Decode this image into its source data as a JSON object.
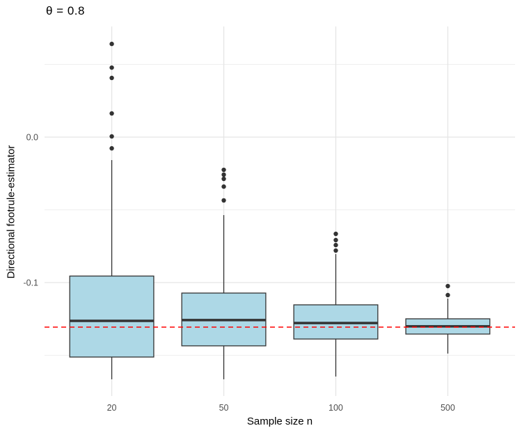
{
  "title": "θ = 0.8",
  "x_axis": {
    "label": "Sample size n",
    "tick_labels": [
      "20",
      "50",
      "100",
      "500"
    ]
  },
  "y_axis": {
    "label": "Directional footrule-estimator",
    "ticks": [
      {
        "label": "0.0",
        "value": 0.0
      },
      {
        "label": "-0.1",
        "value": -0.1
      }
    ]
  },
  "colors": {
    "box_fill": "#ADD8E6",
    "box_border": "#333333",
    "median": "#333333",
    "whisker": "#333333",
    "outlier": "#333333",
    "reference_line": "#FF0000",
    "grid_major": "#E5E5E5",
    "grid_minor": "#EFEFEF",
    "tick_label": "#4D4D4D",
    "background": "#FFFFFF"
  },
  "chart_data": {
    "type": "boxplot",
    "title": "θ = 0.8",
    "xlabel": "Sample size n",
    "ylabel": "Directional footrule-estimator",
    "categories": [
      "20",
      "50",
      "100",
      "500"
    ],
    "ylim": [
      -0.178,
      0.0761
    ],
    "y_major_gridlines": [
      0.0,
      -0.1
    ],
    "y_minor_gridlines": [
      0.05,
      -0.05,
      -0.15
    ],
    "grid": true,
    "legend": false,
    "reference_line": {
      "value": -0.1306,
      "style": "dashed",
      "color": "#FF0000"
    },
    "series": [
      {
        "category": "20",
        "whisker_low": -0.1665,
        "q1": -0.1512,
        "median": -0.1263,
        "q3": -0.0955,
        "whisker_high": -0.0158,
        "outliers": [
          0.0641,
          0.0478,
          0.0407,
          0.0163,
          0.0005,
          -0.0077
        ]
      },
      {
        "category": "50",
        "whisker_low": -0.1665,
        "q1": -0.1435,
        "median": -0.1258,
        "q3": -0.1072,
        "whisker_high": -0.0536,
        "outliers": [
          -0.0225,
          -0.0258,
          -0.0287,
          -0.034,
          -0.0435
        ]
      },
      {
        "category": "100",
        "whisker_low": -0.1646,
        "q1": -0.1388,
        "median": -0.1278,
        "q3": -0.1153,
        "whisker_high": -0.0804,
        "outliers": [
          -0.0665,
          -0.0708,
          -0.0742,
          -0.078
        ]
      },
      {
        "category": "500",
        "whisker_low": -0.1488,
        "q1": -0.1354,
        "median": -0.1301,
        "q3": -0.1249,
        "whisker_high": -0.111,
        "outliers": [
          -0.1024,
          -0.1086
        ]
      }
    ]
  }
}
